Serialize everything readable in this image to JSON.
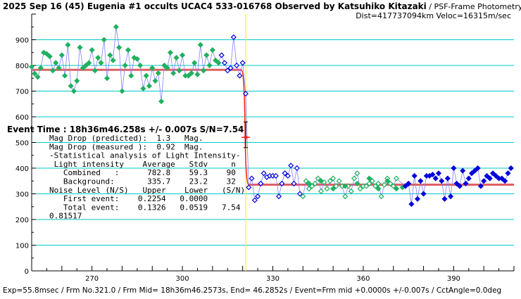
{
  "title_line1_bold": "2025 Sep 16 (45) Eugenia #1 occults UCAC4 533-016768 Observed by Katsuhiko Kitazaki",
  "title_line1_rest": " / PSF-Frame Photometry /",
  "title_line2": "Dist=417737094km Veloc=16315m/sec",
  "event_line": "Event Time : 18h36m46.258s  +/- 0.007s  S/N=7.54",
  "info_lines": [
    "Mag Drop (predicted):  1.3   Mag.",
    "Mag Drop (measured ):  0.92  Mag.",
    "-Statistical analysis of Light Intensity-",
    " Light intensity    Average   Stdv     n",
    "   Combined   :      782.8    59.3    90",
    "   Background:       335.7    23.2    32",
    "Noise Level (N/S)   Upper    Lower   (S/N)",
    "   First event:    0.2254   0.0000",
    "   Total event:    0.1326   0.0519   7.54",
    "0.81517"
  ],
  "footer": "Exp=55.8msec / Frm No.321.0 / Frm Mid= 18h36m46.2573s,  End= 46.2852s / Event=Frm mid +0.0000s +/-0.007s / CctAngle=0.0deg",
  "colors": {
    "grid": "#00c8c8",
    "model": "#e06060",
    "event_line": "#ffff00",
    "green_series": "#20b060",
    "blue_series": "#0000dd",
    "connect_line": "#8080ff",
    "drop_line": "#ff2020"
  },
  "chart_data": {
    "type": "line",
    "xlim": [
      250,
      410
    ],
    "ylim": [
      0,
      1000
    ],
    "xticks": [
      270,
      300,
      330,
      360,
      390
    ],
    "yticks": [
      0,
      100,
      200,
      300,
      400,
      500,
      600,
      700,
      800,
      900
    ],
    "grid": true,
    "event_frame": 321,
    "model_levels": {
      "before": 782.8,
      "after": 335.7
    },
    "event_marker": {
      "x": 321,
      "y": 520,
      "error_low": 480,
      "error_high": 580
    },
    "series": [
      {
        "color_key": "green_series",
        "marker": "filled-diamond",
        "points": [
          [
            250,
            795
          ],
          [
            251,
            768
          ],
          [
            252,
            755
          ],
          [
            253,
            790
          ],
          [
            254,
            850
          ],
          [
            255,
            845
          ],
          [
            256,
            835
          ],
          [
            257,
            780
          ],
          [
            258,
            810
          ],
          [
            259,
            790
          ],
          [
            260,
            840
          ],
          [
            261,
            760
          ],
          [
            262,
            880
          ],
          [
            263,
            720
          ],
          [
            264,
            700
          ],
          [
            265,
            740
          ],
          [
            266,
            870
          ],
          [
            267,
            790
          ],
          [
            268,
            800
          ],
          [
            269,
            810
          ],
          [
            270,
            860
          ],
          [
            271,
            780
          ],
          [
            272,
            830
          ],
          [
            273,
            810
          ],
          [
            274,
            900
          ],
          [
            275,
            750
          ],
          [
            276,
            840
          ],
          [
            277,
            820
          ],
          [
            278,
            950
          ],
          [
            279,
            870
          ],
          [
            280,
            700
          ],
          [
            281,
            800
          ],
          [
            282,
            860
          ],
          [
            283,
            760
          ],
          [
            284,
            830
          ],
          [
            285,
            825
          ],
          [
            286,
            800
          ],
          [
            287,
            710
          ],
          [
            288,
            760
          ],
          [
            289,
            720
          ],
          [
            290,
            790
          ],
          [
            291,
            740
          ],
          [
            292,
            770
          ],
          [
            293,
            660
          ],
          [
            294,
            800
          ],
          [
            295,
            790
          ],
          [
            296,
            850
          ],
          [
            297,
            770
          ],
          [
            298,
            830
          ],
          [
            299,
            780
          ],
          [
            300,
            840
          ],
          [
            301,
            760
          ],
          [
            302,
            760
          ],
          [
            303,
            770
          ],
          [
            304,
            810
          ],
          [
            305,
            765
          ],
          [
            306,
            880
          ],
          [
            307,
            780
          ],
          [
            308,
            840
          ],
          [
            309,
            800
          ],
          [
            310,
            860
          ],
          [
            311,
            820
          ],
          [
            312,
            810
          ]
        ]
      },
      {
        "color_key": "blue_series",
        "marker": "open-diamond",
        "points": [
          [
            313,
            840
          ],
          [
            314,
            810
          ],
          [
            315,
            780
          ],
          [
            316,
            790
          ],
          [
            317,
            910
          ],
          [
            318,
            800
          ],
          [
            319,
            760
          ],
          [
            320,
            810
          ],
          [
            321,
            690
          ]
        ]
      },
      {
        "color_key": "blue_series",
        "marker": "open-diamond",
        "points": [
          [
            322,
            325
          ],
          [
            323,
            360
          ],
          [
            324,
            275
          ],
          [
            325,
            290
          ],
          [
            326,
            340
          ],
          [
            327,
            380
          ],
          [
            328,
            365
          ],
          [
            329,
            370
          ],
          [
            330,
            370
          ],
          [
            331,
            370
          ],
          [
            332,
            290
          ],
          [
            333,
            340
          ],
          [
            334,
            380
          ],
          [
            335,
            370
          ],
          [
            336,
            410
          ],
          [
            337,
            340
          ],
          [
            338,
            400
          ],
          [
            339,
            300
          ]
        ]
      },
      {
        "color_key": "green_series",
        "marker": "open-diamond",
        "points": [
          [
            340,
            290
          ],
          [
            341,
            350
          ],
          [
            342,
            320
          ],
          [
            343,
            330
          ],
          [
            344,
            340
          ],
          [
            345,
            360
          ],
          [
            346,
            310
          ],
          [
            347,
            345
          ],
          [
            348,
            320
          ],
          [
            349,
            350
          ],
          [
            350,
            360
          ],
          [
            351,
            330
          ],
          [
            352,
            350
          ],
          [
            353,
            330
          ],
          [
            354,
            290
          ],
          [
            355,
            330
          ],
          [
            356,
            310
          ],
          [
            357,
            360
          ],
          [
            358,
            380
          ],
          [
            359,
            320
          ],
          [
            360,
            330
          ],
          [
            361,
            330
          ],
          [
            362,
            340
          ],
          [
            363,
            350
          ],
          [
            364,
            330
          ],
          [
            365,
            340
          ],
          [
            366,
            290
          ],
          [
            367,
            335
          ],
          [
            368,
            360
          ],
          [
            369,
            340
          ],
          [
            370,
            330
          ],
          [
            371,
            360
          ]
        ]
      },
      {
        "color_key": "green_series",
        "marker": "filled-diamond",
        "points": [
          [
            342,
            340
          ],
          [
            346,
            350
          ],
          [
            350,
            320
          ],
          [
            354,
            330
          ],
          [
            358,
            340
          ],
          [
            362,
            360
          ],
          [
            365,
            320
          ],
          [
            368,
            350
          ],
          [
            371,
            320
          ],
          [
            373,
            325
          ]
        ]
      },
      {
        "color_key": "blue_series",
        "marker": "filled-diamond",
        "points": [
          [
            374,
            330
          ],
          [
            375,
            340
          ],
          [
            376,
            260
          ],
          [
            377,
            370
          ],
          [
            378,
            280
          ],
          [
            379,
            350
          ],
          [
            380,
            300
          ],
          [
            381,
            370
          ],
          [
            382,
            370
          ],
          [
            383,
            375
          ],
          [
            384,
            360
          ],
          [
            385,
            380
          ],
          [
            386,
            350
          ],
          [
            387,
            280
          ],
          [
            388,
            360
          ],
          [
            389,
            290
          ],
          [
            390,
            400
          ],
          [
            391,
            340
          ],
          [
            392,
            330
          ],
          [
            393,
            390
          ],
          [
            394,
            340
          ],
          [
            395,
            360
          ],
          [
            396,
            380
          ],
          [
            397,
            390
          ],
          [
            398,
            400
          ],
          [
            399,
            330
          ],
          [
            400,
            350
          ],
          [
            401,
            370
          ],
          [
            402,
            360
          ],
          [
            403,
            380
          ],
          [
            404,
            370
          ],
          [
            405,
            360
          ],
          [
            406,
            360
          ],
          [
            407,
            350
          ],
          [
            408,
            380
          ],
          [
            409,
            400
          ]
        ]
      }
    ]
  }
}
